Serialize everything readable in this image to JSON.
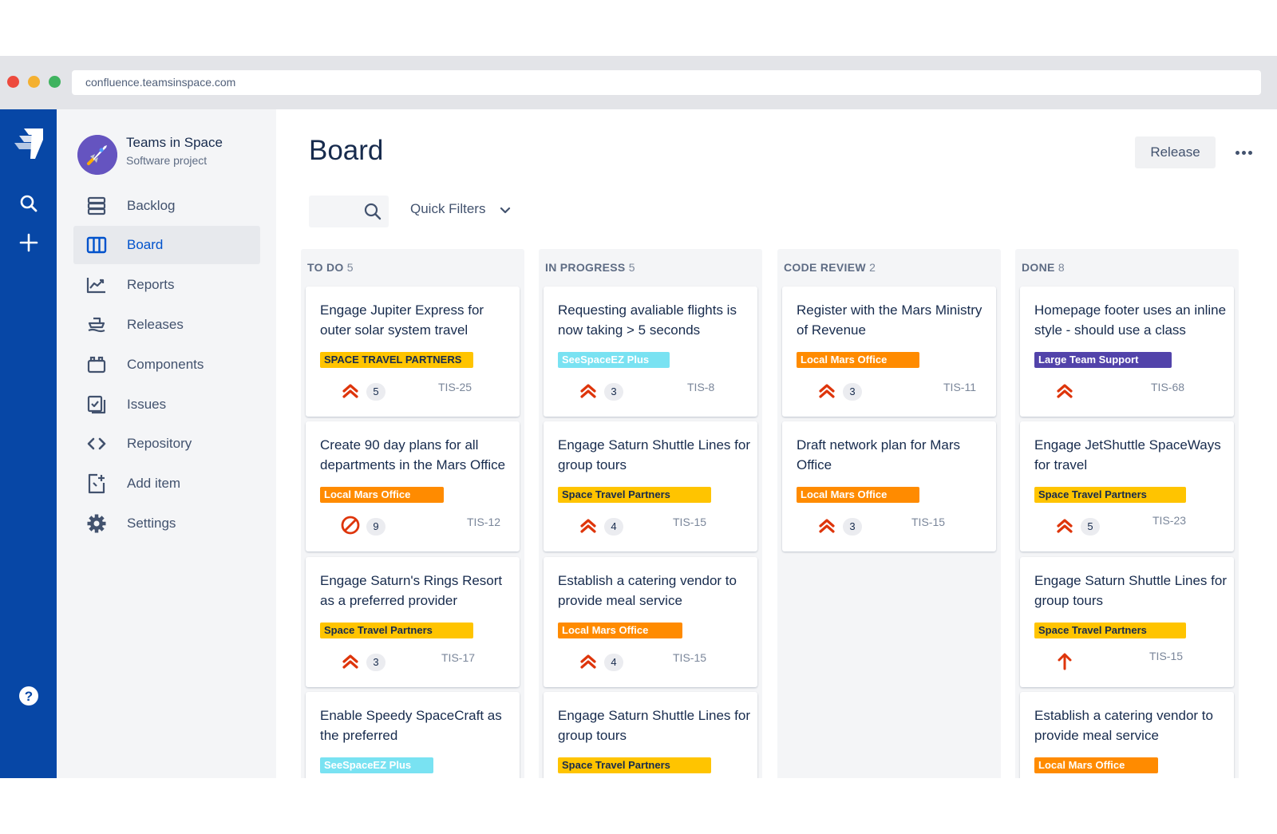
{
  "browser": {
    "url": "confluence.teamsinspace.com"
  },
  "sidebar": {
    "project_name": "Teams in Space",
    "project_type": "Software project",
    "items": [
      {
        "label": "Backlog",
        "icon": "backlog-icon"
      },
      {
        "label": "Board",
        "icon": "board-icon",
        "active": true
      },
      {
        "label": "Reports",
        "icon": "reports-icon"
      },
      {
        "label": "Releases",
        "icon": "releases-icon"
      },
      {
        "label": "Components",
        "icon": "components-icon"
      },
      {
        "label": "Issues",
        "icon": "issues-icon"
      },
      {
        "label": "Repository",
        "icon": "repository-icon"
      },
      {
        "label": "Add item",
        "icon": "add-item-icon"
      },
      {
        "label": "Settings",
        "icon": "settings-icon"
      }
    ]
  },
  "header": {
    "title": "Board",
    "release_label": "Release",
    "quick_filters_label": "Quick Filters"
  },
  "colors": {
    "yellow_label": "#ffc400",
    "orange_label": "#ff8b00",
    "cyan_label": "#79e2f2",
    "purple_label": "#5243aa",
    "priority_red": "#de350b",
    "nav_blue": "#0747a6"
  },
  "columns": [
    {
      "title": "TO DO",
      "count": "5",
      "cards": [
        {
          "title": "Engage Jupiter Express for outer solar system travel",
          "label": "SPACE TRAVEL PARTNERS",
          "label_color": "yellow",
          "priority": "highest-icon",
          "estimate": "5",
          "key": "TIS-25"
        },
        {
          "title": "Create 90 day plans for all departments in the Mars Office",
          "label": "Local Mars Office",
          "label_color": "orange",
          "priority": "blocker-icon",
          "estimate": "9",
          "key": "TIS-12"
        },
        {
          "title": "Engage Saturn's Rings Resort as a preferred provider",
          "label": "Space Travel Partners",
          "label_color": "yellow",
          "priority": "highest-icon",
          "estimate": "3",
          "key": "TIS-17"
        },
        {
          "title": "Enable Speedy SpaceCraft as the preferred",
          "label": "SeeSpaceEZ Plus",
          "label_color": "cyan",
          "priority": "highest-icon",
          "estimate": "",
          "key": ""
        }
      ]
    },
    {
      "title": "IN PROGRESS",
      "count": "5",
      "cards": [
        {
          "title": "Requesting avaliable flights is now taking > 5 seconds",
          "label": "SeeSpaceEZ Plus",
          "label_color": "cyan",
          "priority": "highest-icon",
          "estimate": "3",
          "key": "TIS-8"
        },
        {
          "title": "Engage Saturn Shuttle Lines for group tours",
          "label": "Space Travel Partners",
          "label_color": "yellow",
          "priority": "highest-icon",
          "estimate": "4",
          "key": "TIS-15"
        },
        {
          "title": "Establish a catering vendor to provide meal service",
          "label": "Local Mars Office",
          "label_color": "orange",
          "priority": "highest-icon",
          "estimate": "4",
          "key": "TIS-15"
        },
        {
          "title": "Engage Saturn Shuttle Lines for group tours",
          "label": "Space Travel Partners",
          "label_color": "yellow",
          "priority": "highest-icon",
          "estimate": "",
          "key": ""
        }
      ]
    },
    {
      "title": "CODE REVIEW",
      "count": "2",
      "cards": [
        {
          "title": "Register with the Mars Ministry of Revenue",
          "label": "Local Mars Office",
          "label_color": "orange",
          "priority": "highest-icon",
          "estimate": "3",
          "key": "TIS-11"
        },
        {
          "title": "Draft network plan for Mars Office",
          "label": "Local Mars Office",
          "label_color": "orange",
          "priority": "highest-icon",
          "estimate": "3",
          "key": "TIS-15"
        }
      ]
    },
    {
      "title": "DONE",
      "count": "8",
      "cards": [
        {
          "title": "Homepage footer uses an inline style - should use a class",
          "label": "Large Team Support",
          "label_color": "purple",
          "priority": "highest-icon",
          "estimate": "",
          "key": "TIS-68"
        },
        {
          "title": "Engage JetShuttle SpaceWays for travel",
          "label": "Space Travel Partners",
          "label_color": "yellow",
          "priority": "highest-icon",
          "estimate": "5",
          "key": "TIS-23"
        },
        {
          "title": "Engage Saturn Shuttle Lines for group tours",
          "label": "Space Travel Partners",
          "label_color": "yellow",
          "priority": "high-icon",
          "estimate": "",
          "key": "TIS-15"
        },
        {
          "title": "Establish a catering vendor to provide meal service",
          "label": "Local Mars Office",
          "label_color": "orange",
          "priority": "highest-icon",
          "estimate": "",
          "key": ""
        }
      ]
    }
  ]
}
